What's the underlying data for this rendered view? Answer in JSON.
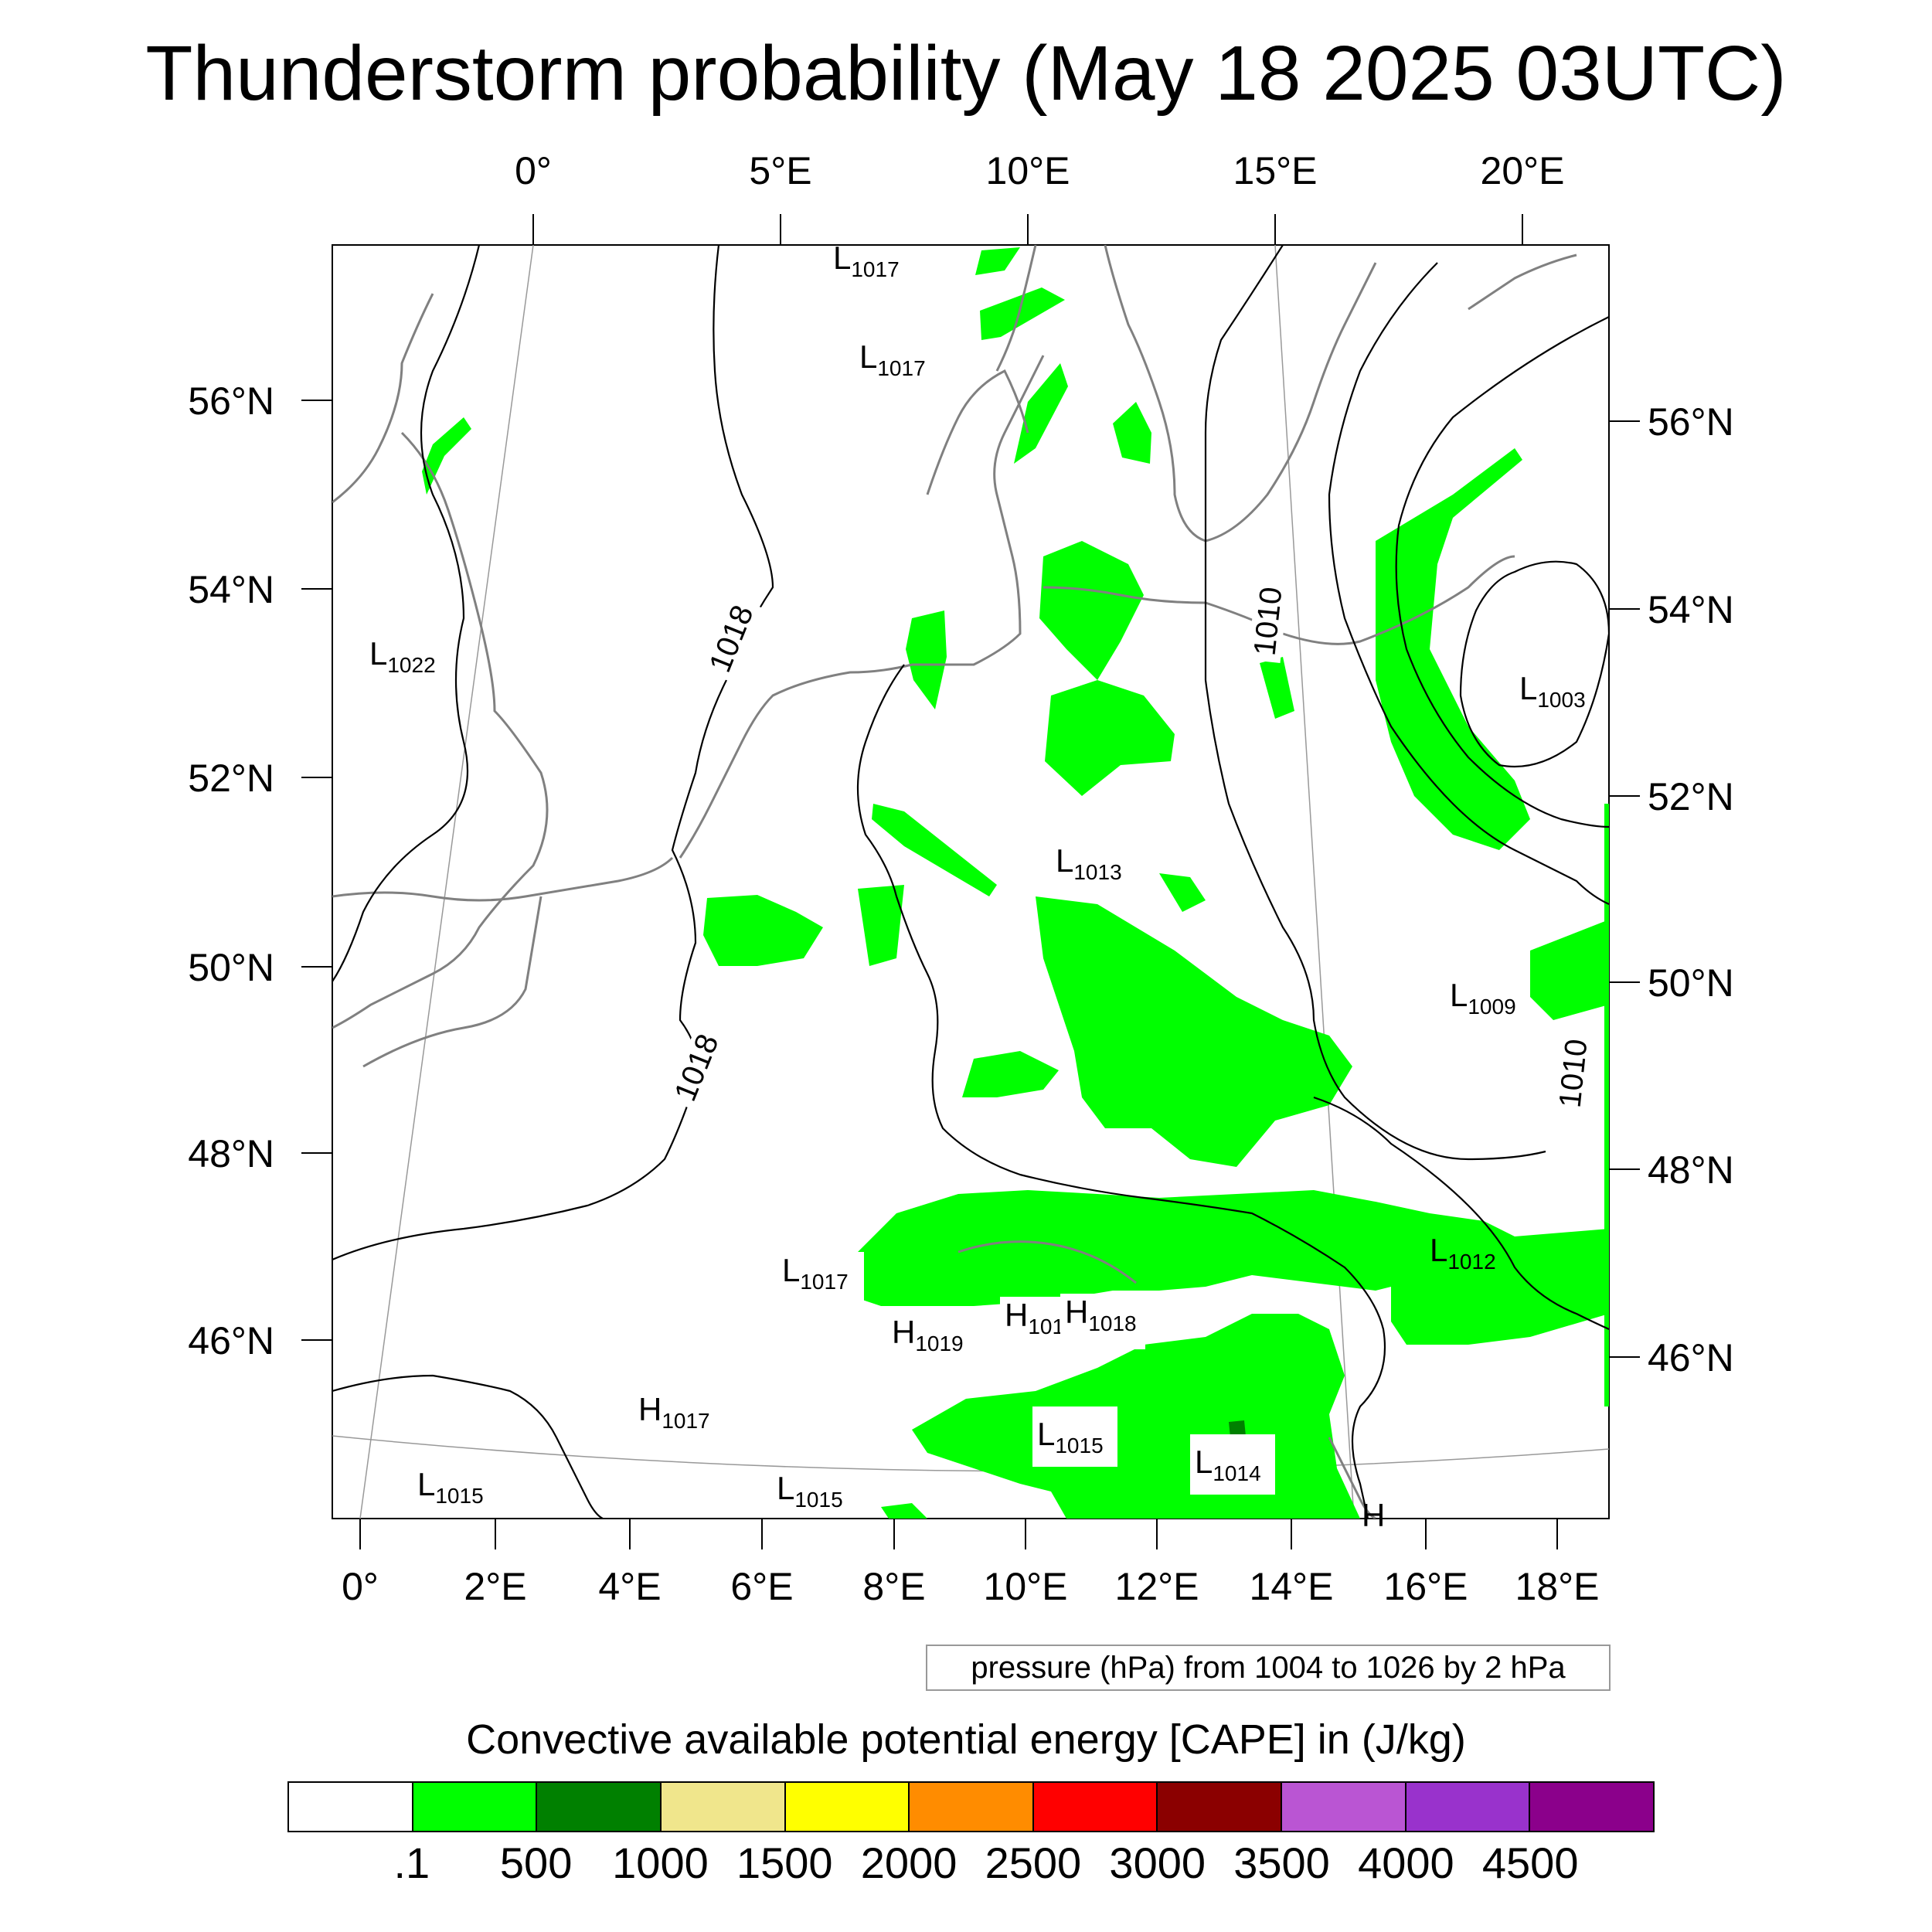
{
  "title": "Thunderstorm probability (May 18 2025 03UTC)",
  "top_longitude_labels": [
    "0°",
    "5°E",
    "10°E",
    "15°E",
    "20°E"
  ],
  "bottom_longitude_labels": [
    "0°",
    "2°E",
    "4°E",
    "6°E",
    "8°E",
    "10°E",
    "12°E",
    "14°E",
    "16°E",
    "18°E"
  ],
  "left_latitude_labels": [
    "56°N",
    "54°N",
    "52°N",
    "50°N",
    "48°N",
    "46°N"
  ],
  "right_latitude_labels": [
    "56°N",
    "54°N",
    "52°N",
    "50°N",
    "48°N",
    "46°N"
  ],
  "isobar_labels": [
    "1018",
    "1018",
    "1010",
    "1010"
  ],
  "pressure_centers": [
    {
      "type": "L",
      "value": "1017"
    },
    {
      "type": "L",
      "value": "1017"
    },
    {
      "type": "L",
      "value": "1022"
    },
    {
      "type": "L",
      "value": "1003"
    },
    {
      "type": "L",
      "value": "1013"
    },
    {
      "type": "L",
      "value": "1009"
    },
    {
      "type": "L",
      "value": "1012"
    },
    {
      "type": "L",
      "value": "1017"
    },
    {
      "type": "H",
      "value": "1019"
    },
    {
      "type": "H",
      "value": "101"
    },
    {
      "type": "H",
      "value": "1018"
    },
    {
      "type": "H",
      "value": "1017"
    },
    {
      "type": "L",
      "value": "1015"
    },
    {
      "type": "L",
      "value": "1014"
    },
    {
      "type": "L",
      "value": "1015"
    },
    {
      "type": "L",
      "value": "1015"
    },
    {
      "type": "H",
      "value": ""
    }
  ],
  "pressure_note": "pressure (hPa) from 1004 to 1026 by 2 hPa",
  "colorbar": {
    "title": "Convective available potential energy [CAPE] in (J/kg)",
    "colors": [
      "#ffffff",
      "#00ff00",
      "#008000",
      "#f0e68c",
      "#ffff00",
      "#ff8c00",
      "#ff0000",
      "#8b0000",
      "#ba55d3",
      "#9932cc",
      "#8b008b"
    ],
    "labels": [
      ".1",
      "500",
      "1000",
      "1500",
      "2000",
      "2500",
      "3000",
      "3500",
      "4000",
      "4500"
    ]
  },
  "colors": {
    "cape_low": "#00ff00",
    "cape_mid": "#008000",
    "coastline": "#808080",
    "isobar": "#000000",
    "graticule": "#999999"
  }
}
